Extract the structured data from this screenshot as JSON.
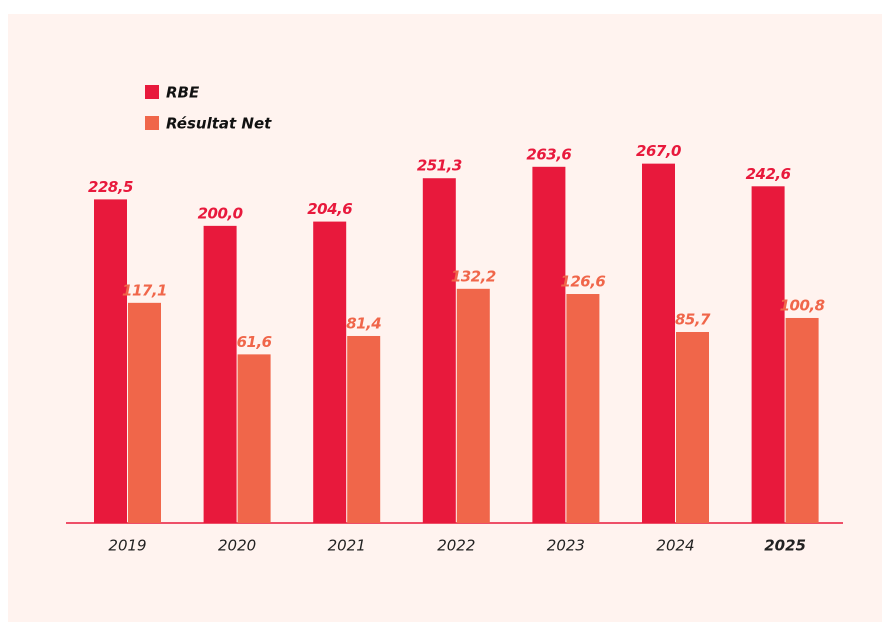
{
  "chart_data": {
    "type": "bar",
    "categories": [
      "2019",
      "2020",
      "2021",
      "2022",
      "2023",
      "2024",
      "2025"
    ],
    "series": [
      {
        "name": "RBE",
        "color": "#e8193c",
        "values": [
          228.5,
          200.0,
          204.6,
          251.3,
          263.6,
          267.0,
          242.6
        ],
        "value_labels": [
          "228,5",
          "200,0",
          "204,6",
          "251,3",
          "263,6",
          "267,0",
          "242,6"
        ]
      },
      {
        "name": "Résultat Net",
        "color": "#f0664a",
        "values": [
          117.1,
          61.6,
          81.4,
          132.2,
          126.6,
          85.7,
          100.8
        ],
        "value_labels": [
          "117,1",
          "61,6",
          "81,4",
          "132,2",
          "126,6",
          "85,7",
          "100,8"
        ]
      }
    ],
    "ylim": [
      -120,
      300
    ],
    "legend": "top-left"
  }
}
